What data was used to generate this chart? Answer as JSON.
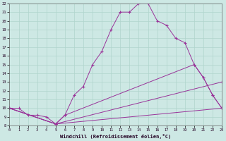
{
  "xlabel": "Windchill (Refroidissement éolien,°C)",
  "bg_color": "#cde8e4",
  "grid_color": "#b0d4cc",
  "line_color": "#993399",
  "line1_x": [
    0,
    1,
    2,
    3,
    4,
    5,
    6,
    7,
    8,
    9,
    10,
    11,
    12,
    13,
    14,
    15,
    16,
    17,
    18,
    19,
    20,
    21,
    22,
    23
  ],
  "line1_y": [
    10,
    10,
    9.2,
    9.2,
    9.0,
    8.2,
    9.2,
    11.5,
    12.5,
    15.0,
    16.5,
    19.0,
    21.0,
    21.0,
    22.0,
    22.0,
    20.0,
    19.5,
    18.0,
    17.5,
    15.0,
    13.5,
    11.5,
    10.0
  ],
  "line2_x": [
    0,
    5,
    6,
    20,
    21,
    22,
    23
  ],
  "line2_y": [
    10,
    8.2,
    9.2,
    15.0,
    13.5,
    11.5,
    10.0
  ],
  "line3_x": [
    0,
    5,
    23
  ],
  "line3_y": [
    10,
    8.2,
    13.0
  ],
  "line4_x": [
    0,
    5,
    23
  ],
  "line4_y": [
    10,
    8.2,
    10.0
  ],
  "xlim": [
    0,
    23
  ],
  "ylim": [
    8,
    22
  ],
  "xticks": [
    0,
    1,
    2,
    3,
    4,
    5,
    6,
    7,
    8,
    9,
    10,
    11,
    12,
    13,
    14,
    15,
    16,
    17,
    18,
    19,
    20,
    21,
    22,
    23
  ],
  "yticks": [
    8,
    9,
    10,
    11,
    12,
    13,
    14,
    15,
    16,
    17,
    18,
    19,
    20,
    21,
    22
  ]
}
